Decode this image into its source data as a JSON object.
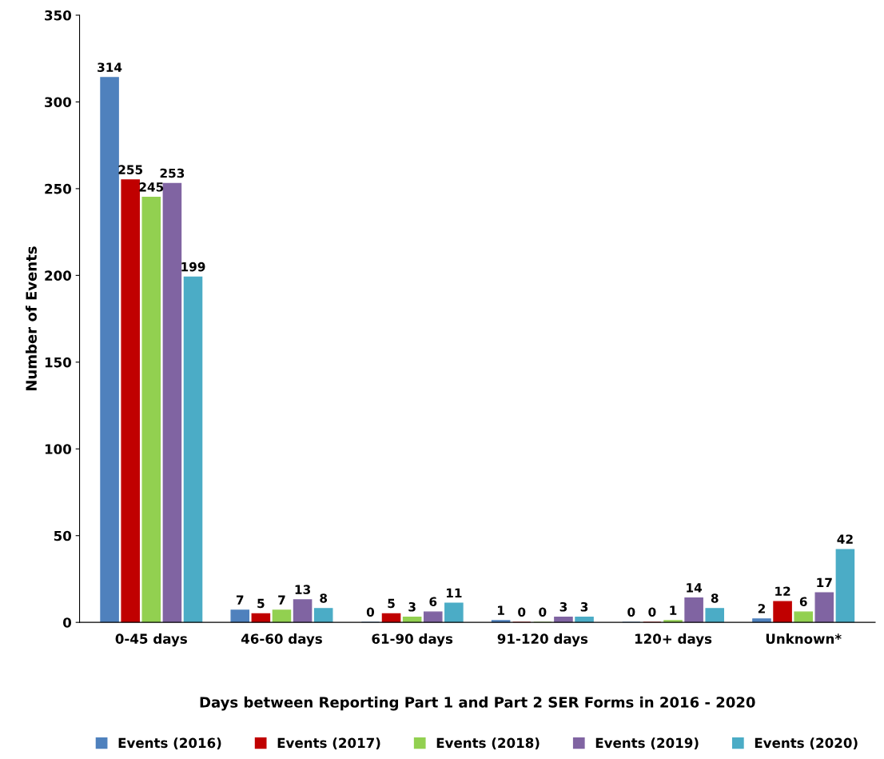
{
  "chart_data": {
    "type": "bar",
    "xlabel": "Days between Reporting Part 1 and Part 2 SER Forms in 2016 - 2020",
    "ylabel": "Number of Events",
    "categories": [
      "0-45 days",
      "46-60 days",
      "61-90 days",
      "91-120 days",
      "120+ days",
      "Unknown*"
    ],
    "series": [
      {
        "name": "Events (2016)",
        "color": "#4f81bd",
        "values": [
          314,
          7,
          0,
          1,
          0,
          2
        ]
      },
      {
        "name": "Events (2017)",
        "color": "#c00000",
        "values": [
          255,
          5,
          5,
          0,
          0,
          12
        ]
      },
      {
        "name": "Events (2018)",
        "color": "#92d050",
        "values": [
          245,
          7,
          3,
          0,
          1,
          6
        ]
      },
      {
        "name": "Events (2019)",
        "color": "#8064a2",
        "values": [
          253,
          13,
          6,
          3,
          14,
          17
        ]
      },
      {
        "name": "Events (2020)",
        "color": "#4bacc6",
        "values": [
          199,
          8,
          11,
          3,
          8,
          42
        ]
      }
    ],
    "ylim": [
      0,
      350
    ],
    "yticks": [
      0,
      50,
      100,
      150,
      200,
      250,
      300,
      350
    ],
    "data_labels": true,
    "grid": false,
    "legend": "bottom"
  }
}
